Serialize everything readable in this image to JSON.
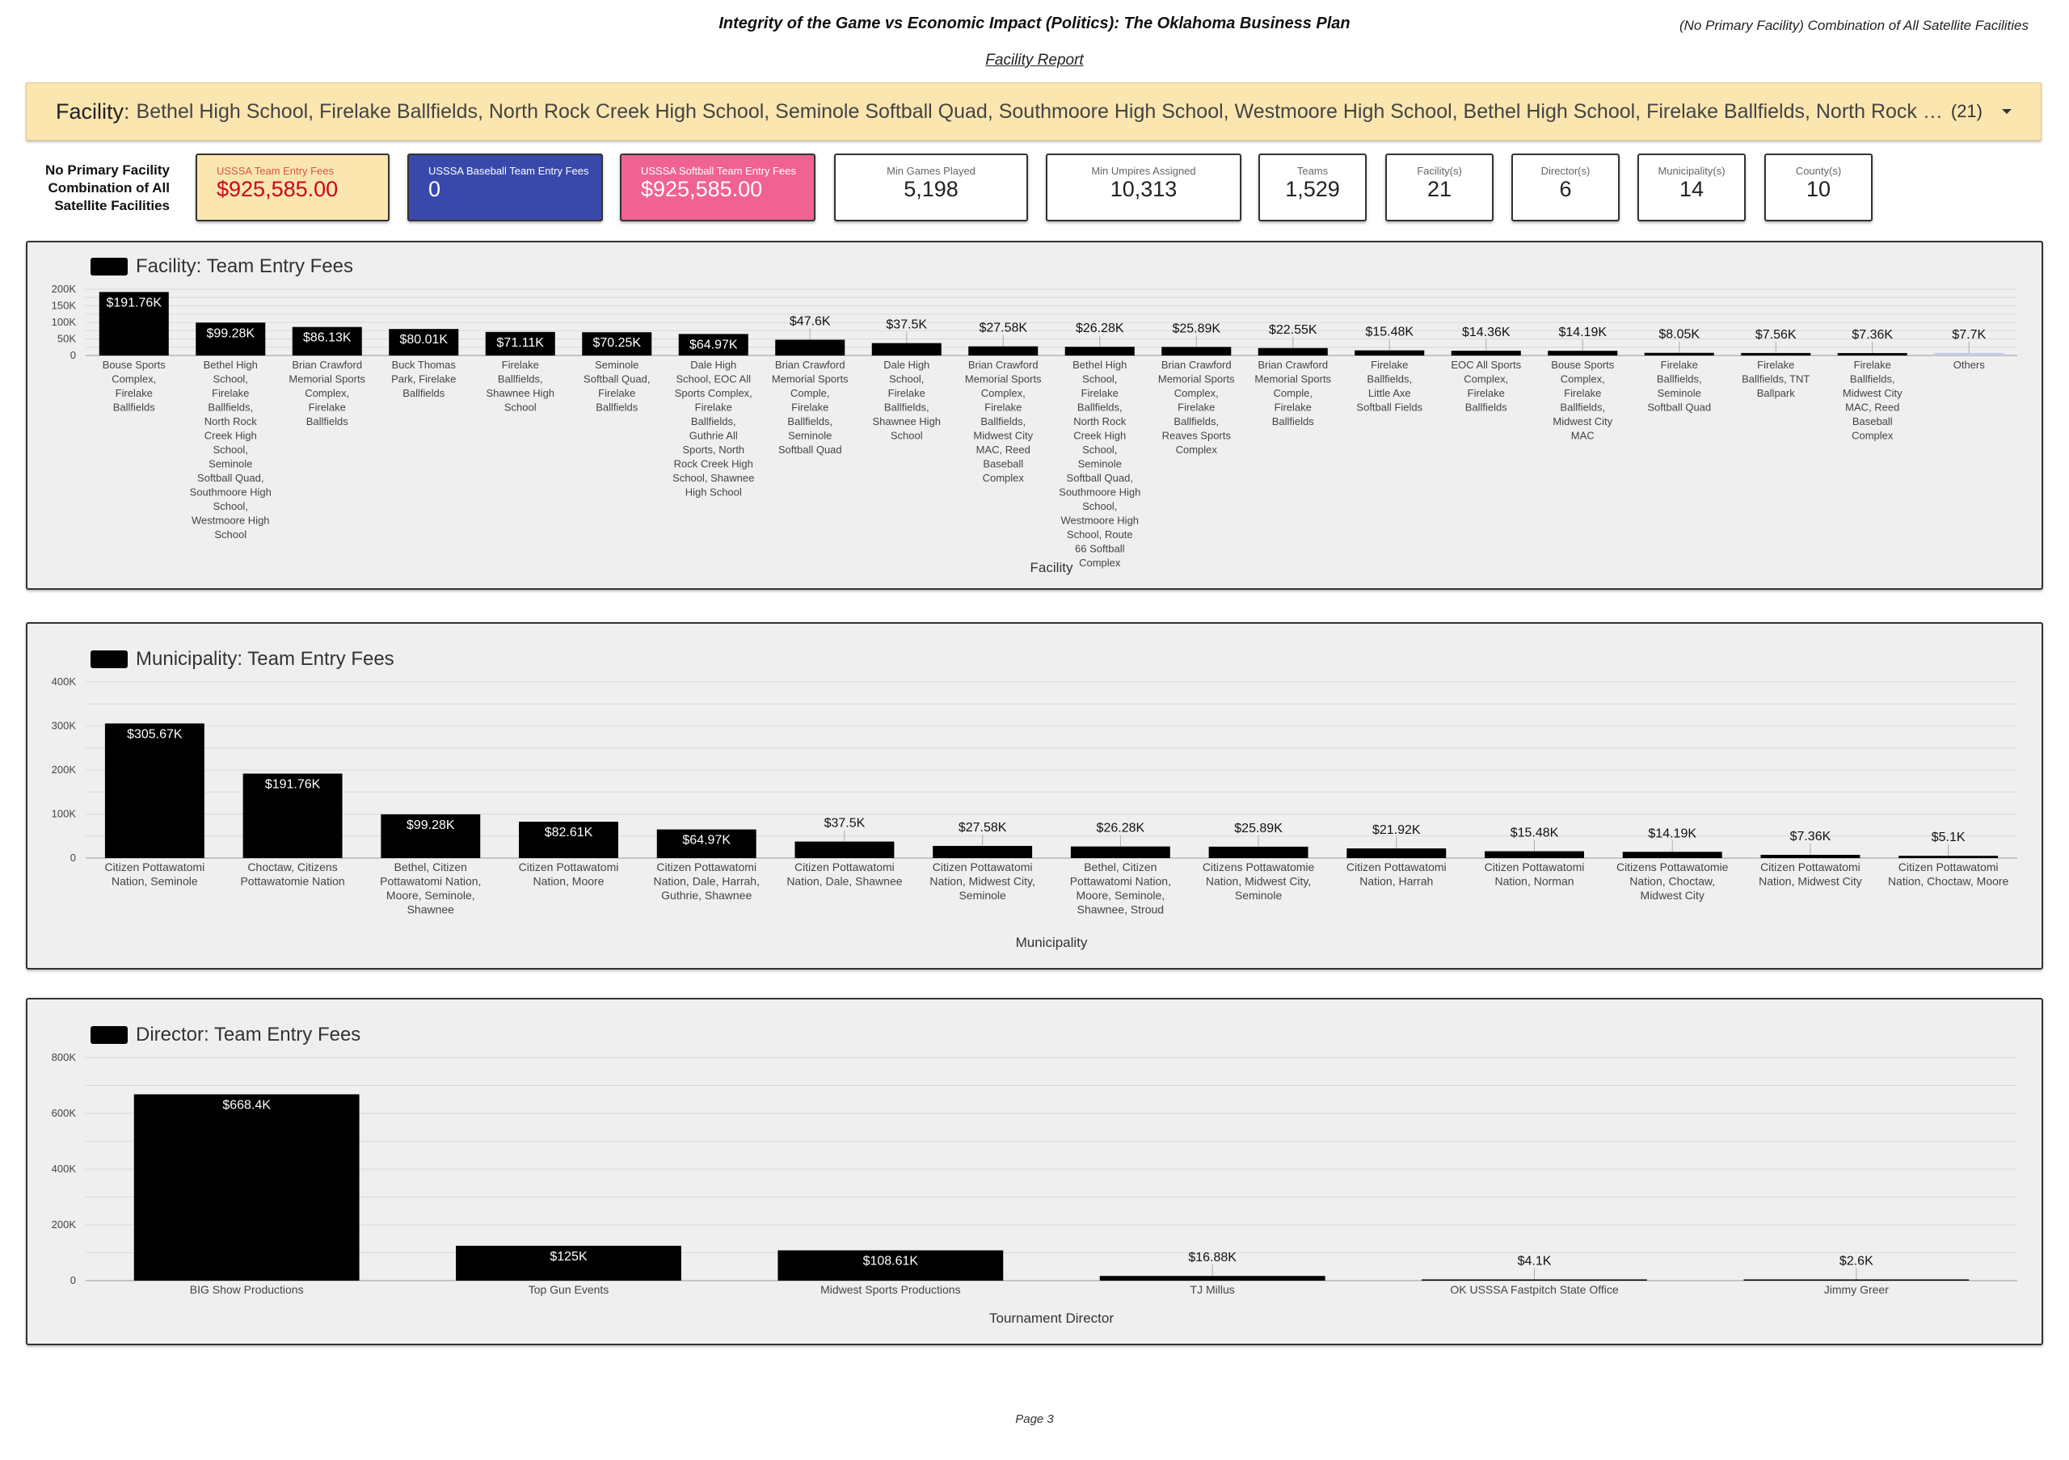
{
  "header": {
    "title": "Integrity of the Game vs Economic Impact (Politics): The Oklahoma Business Plan",
    "subtitle_right": "(No Primary Facility) Combination of All Satellite Facilities",
    "report_label": "Facility Report"
  },
  "filter": {
    "label": "Facility",
    "separator": ":",
    "value": "Bethel High School, Firelake Ballfields, North Rock Creek High School, Seminole Softball Quad, Southmoore High School, Westmoore High School, Bethel High School, Firelake Ballfields, North Rock Creek High School, Seminole Softball Quad, Southmoore High School",
    "count": "(21)"
  },
  "scope_label": [
    "No Primary Facility",
    "Combination of All",
    "Satellite Facilities"
  ],
  "cards": [
    {
      "label": "USSSA Team Entry Fees",
      "value": "$925,585.00",
      "bg": "#fbe6b0",
      "label_color": "#d9534f",
      "value_color": "#d0021b"
    },
    {
      "label": "USSSA Baseball Team Entry Fees",
      "value": "0",
      "bg": "#3949ab",
      "label_color": "#ffffff",
      "value_color": "#ffffff"
    },
    {
      "label": "USSSA Softball Team Entry Fees",
      "value": "$925,585.00",
      "bg": "#f06292",
      "label_color": "#ffffff",
      "value_color": "#ffffff"
    },
    {
      "label": "Min Games Played",
      "value": "5,198"
    },
    {
      "label": "Min Umpires Assigned",
      "value": "10,313"
    },
    {
      "label": "Teams",
      "value": "1,529"
    },
    {
      "label": "Facility(s)",
      "value": "21"
    },
    {
      "label": "Director(s)",
      "value": "6"
    },
    {
      "label": "Municipality(s)",
      "value": "14"
    },
    {
      "label": "County(s)",
      "value": "10"
    }
  ],
  "chart_data": [
    {
      "type": "bar",
      "title": "Facility: Team Entry Fees",
      "legend": "Facility: Team Entry Fees",
      "xlabel": "Facility",
      "ylabel": "",
      "ylim": [
        0,
        200000
      ],
      "yticks": [
        "0",
        "50K",
        "100K",
        "150K",
        "200K"
      ],
      "color": "#000000",
      "categories": [
        "Bouse Sports Complex, Firelake Ballfields",
        "Bethel High School, Firelake Ballfields, North Rock Creek High School, Seminole Softball Quad, Southmoore High School, Westmoore High School",
        "Brian Crawford Memorial Sports Complex, Firelake Ballfields",
        "Buck Thomas Park, Firelake Ballfields",
        "Firelake Ballfields, Shawnee High School",
        "Seminole Softball Quad, Firelake Ballfields",
        "Dale High School, EOC All Sports Complex, Firelake Ballfields, Guthrie All Sports, North Rock Creek High School, Shawnee High School",
        "Brian Crawford Memorial Sports Comple, Firelake Ballfields, Seminole Softball Quad",
        "Dale High School, Firelake Ballfields, Shawnee High School",
        "Brian Crawford Memorial Sports Complex, Firelake Ballfields, Midwest City MAC, Reed Baseball Complex",
        "Bethel High School, Firelake Ballfields, North Rock Creek High School, Seminole Softball Quad, Southmoore High School, Westmoore High School, Route 66 Softball Complex",
        "Brian Crawford Memorial Sports Complex, Firelake Ballfields, Reaves Sports Complex",
        "Brian Crawford Memorial Sports Comple, Firelake Ballfields",
        "Firelake Ballfields, Little Axe Softball Fields",
        "EOC All Sports Complex, Firelake Ballfields",
        "Bouse Sports Complex, Firelake Ballfields, Midwest City MAC",
        "Firelake Ballfields, Seminole Softball Quad",
        "Firelake Ballfields, TNT Ballpark",
        "Firelake Ballfields, Midwest City MAC, Reed Baseball Complex",
        "Others"
      ],
      "values": [
        191760,
        99280,
        86130,
        80010,
        71110,
        70250,
        64970,
        47600,
        37500,
        27580,
        26280,
        25890,
        22550,
        15480,
        14360,
        14190,
        8050,
        7560,
        7360,
        7700
      ],
      "data_labels": [
        "$191.76K",
        "$99.28K",
        "$86.13K",
        "$80.01K",
        "$71.11K",
        "$70.25K",
        "$64.97K",
        "$47.6K",
        "$37.5K",
        "$27.58K",
        "$26.28K",
        "$25.89K",
        "$22.55K",
        "$15.48K",
        "$14.36K",
        "$14.19K",
        "$8.05K",
        "$7.56K",
        "$7.36K",
        "$7.7K"
      ],
      "others_color": "#c5cae9"
    },
    {
      "type": "bar",
      "title": "Municipality: Team Entry Fees",
      "legend": "Municipality: Team Entry Fees",
      "xlabel": "Municipality",
      "ylabel": "",
      "ylim": [
        0,
        400000
      ],
      "yticks": [
        "0",
        "100K",
        "200K",
        "300K",
        "400K"
      ],
      "color": "#000000",
      "categories": [
        "Citizen Pottawatomi Nation, Seminole",
        "Choctaw, Citizens Pottawatomie Nation",
        "Bethel, Citizen Pottawatomi Nation, Moore, Seminole, Shawnee",
        "Citizen Pottawatomi Nation, Moore",
        "Citizen Pottawatomi Nation, Dale, Harrah, Guthrie, Shawnee",
        "Citizen Pottawatomi Nation, Dale, Shawnee",
        "Citizen Pottawatomi Nation, Midwest City, Seminole",
        "Bethel, Citizen Pottawatomi Nation, Moore, Seminole, Shawnee, Stroud",
        "Citizens Pottawatomie Nation, Midwest City, Seminole",
        "Citizen Pottawatomi Nation, Harrah",
        "Citizen Pottawatomi Nation, Norman",
        "Citizens Pottawatomie Nation, Choctaw, Midwest City",
        "Citizen Pottawatomi Nation, Midwest City",
        "Citizen Pottawatomi Nation, Choctaw, Moore"
      ],
      "values": [
        305670,
        191760,
        99280,
        82610,
        64970,
        37500,
        27580,
        26280,
        25890,
        21920,
        15480,
        14190,
        7360,
        5100
      ],
      "data_labels": [
        "$305.67K",
        "$191.76K",
        "$99.28K",
        "$82.61K",
        "$64.97K",
        "$37.5K",
        "$27.58K",
        "$26.28K",
        "$25.89K",
        "$21.92K",
        "$15.48K",
        "$14.19K",
        "$7.36K",
        "$5.1K"
      ]
    },
    {
      "type": "bar",
      "title": "Director: Team Entry Fees",
      "legend": "Director: Team Entry Fees",
      "xlabel": "Tournament Director",
      "ylabel": "",
      "ylim": [
        0,
        800000
      ],
      "yticks": [
        "0",
        "200K",
        "400K",
        "600K",
        "800K"
      ],
      "color": "#000000",
      "categories": [
        "BIG Show Productions",
        "Top Gun Events",
        "Midwest Sports Productions",
        "TJ Millus",
        "OK USSSA Fastpitch State Office",
        "Jimmy Greer"
      ],
      "values": [
        668400,
        125000,
        108610,
        16880,
        4100,
        2600
      ],
      "data_labels": [
        "$668.4K",
        "$125K",
        "$108.61K",
        "$16.88K",
        "$4.1K",
        "$2.6K"
      ]
    }
  ],
  "footer": {
    "page": "Page 3"
  }
}
